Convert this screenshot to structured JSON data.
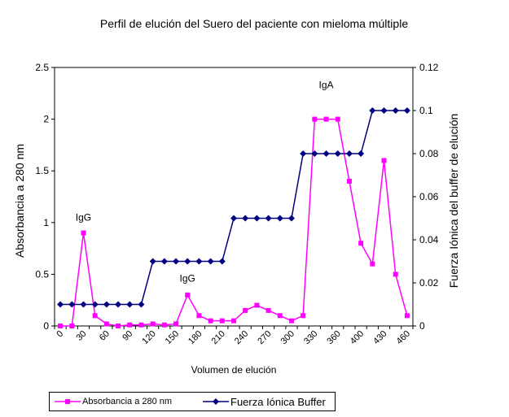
{
  "chart_data": {
    "type": "line",
    "title": "Perfil de elución del Suero del paciente con mieloma múltiple",
    "xlabel": "Volumen de elución",
    "ylabel_left": "Absorbancia a 280 nm",
    "ylabel_right": "Fuerza Iónica del buffer de elución",
    "x_ticks": [
      "0",
      "30",
      "60",
      "90",
      "120",
      "150",
      "180",
      "210",
      "240",
      "270",
      "300",
      "330",
      "360",
      "400",
      "430",
      "460"
    ],
    "y_left": {
      "min": 0,
      "max": 2.5,
      "ticks": [
        "0",
        "0.5",
        "1",
        "1.5",
        "2",
        "2.5"
      ]
    },
    "y_right": {
      "min": 0,
      "max": 0.12,
      "ticks": [
        "0",
        "0.02",
        "0.04",
        "0.06",
        "0.08",
        "0.1",
        "0.12"
      ]
    },
    "grid": false,
    "legend_position": "bottom-left",
    "series": [
      {
        "name": "Absorbancia a 280 nm",
        "axis": "left",
        "color": "#ff00ff",
        "marker": "square",
        "values": [
          0,
          0,
          0.9,
          0.1,
          0.02,
          0,
          0.01,
          0.01,
          0.02,
          0.01,
          0.02,
          0.3,
          0.1,
          0.05,
          0.05,
          0.05,
          0.15,
          0.2,
          0.15,
          0.1,
          0.05,
          0.1,
          2.0,
          2.0,
          2.0,
          1.4,
          0.8,
          0.6,
          1.6,
          0.5,
          0.1
        ]
      },
      {
        "name": "Fuerza Iónica Buffer",
        "axis": "right",
        "color": "#000080",
        "marker": "diamond",
        "values": [
          0.01,
          0.01,
          0.01,
          0.01,
          0.01,
          0.01,
          0.01,
          0.01,
          0.03,
          0.03,
          0.03,
          0.03,
          0.03,
          0.03,
          0.03,
          0.05,
          0.05,
          0.05,
          0.05,
          0.05,
          0.05,
          0.08,
          0.08,
          0.08,
          0.08,
          0.08,
          0.08,
          0.1,
          0.1,
          0.1,
          0.1
        ]
      }
    ],
    "annotations": [
      {
        "text": "IgG",
        "x_index": 2,
        "y": 1.02
      },
      {
        "text": "IgG",
        "x_index": 11,
        "y": 0.43
      },
      {
        "text": "IgA",
        "x_index": 23,
        "y": 2.3
      }
    ]
  }
}
